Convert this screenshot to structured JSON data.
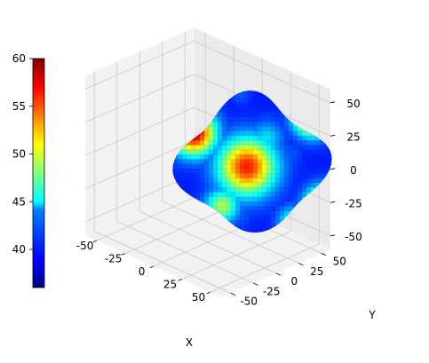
{
  "chart_data": {
    "type": "surface3d",
    "title": "",
    "xlabel": "X",
    "ylabel": "Y",
    "zlabel": "",
    "xlim": [
      -60,
      60
    ],
    "ylim": [
      -60,
      60
    ],
    "zlim": [
      -60,
      60
    ],
    "xticks": [
      -50,
      -25,
      0,
      25,
      50
    ],
    "yticks": [
      -50,
      -25,
      0,
      25,
      50
    ],
    "zticks": [
      -50,
      -25,
      0,
      25,
      50
    ],
    "grid": true,
    "surface": {
      "shape": "lumpy star-shaped closed surface (spherical radius modulated by angular harmonics)",
      "radius_range": [
        36,
        60
      ],
      "color_value": "radius",
      "colormap": "jet"
    },
    "colorbar": {
      "position": "left",
      "min": 36,
      "max": 60,
      "ticks": [
        40,
        45,
        50,
        55,
        60
      ]
    }
  }
}
